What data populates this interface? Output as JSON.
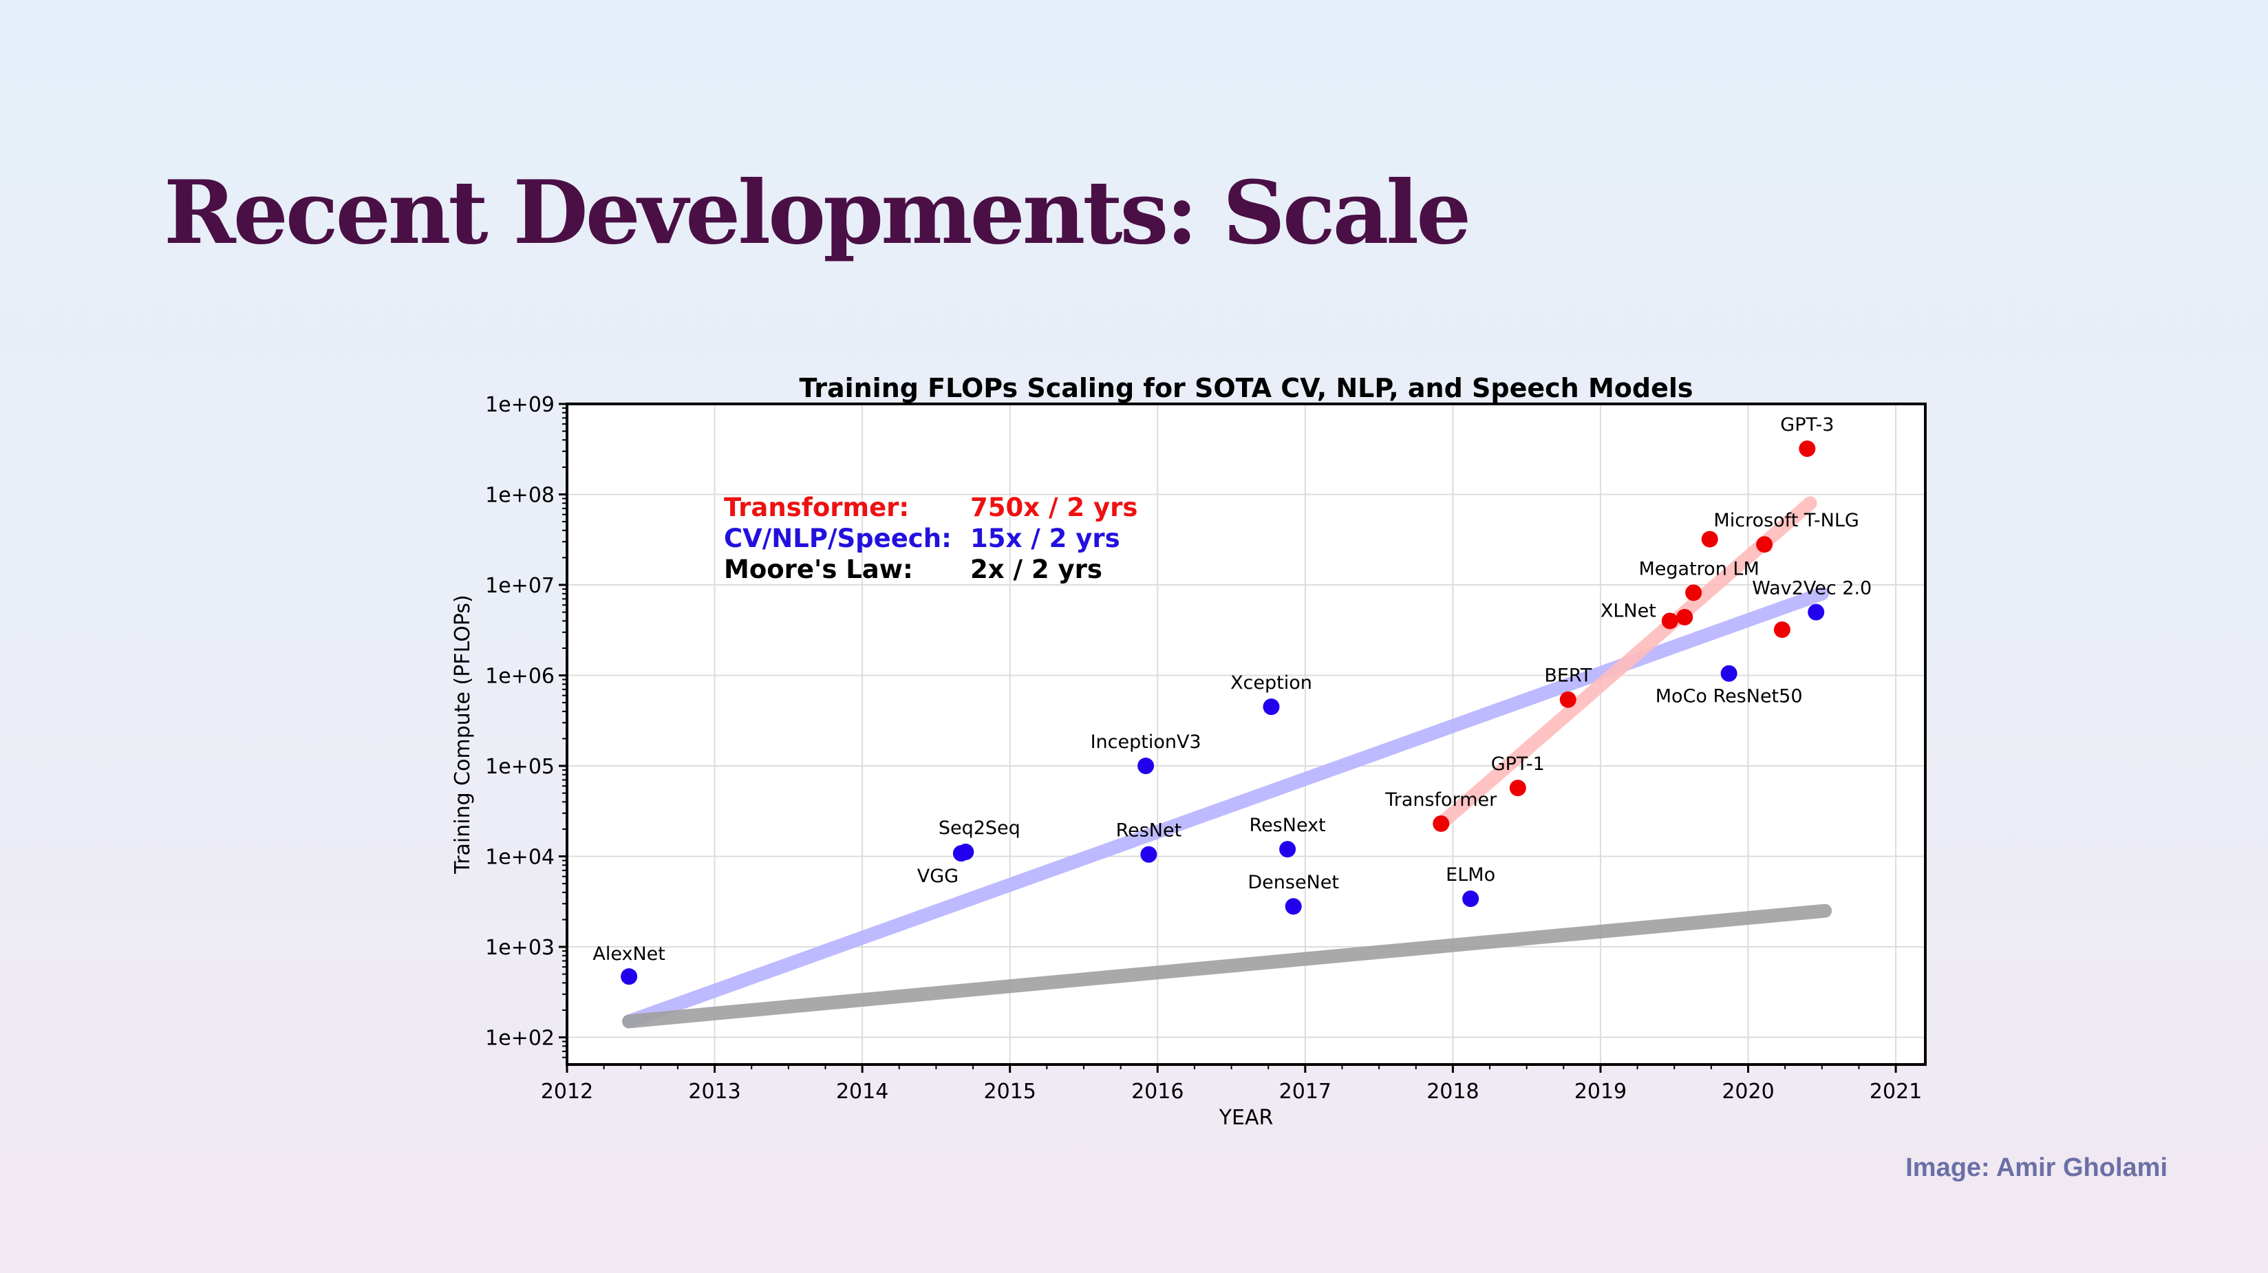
{
  "slide": {
    "title": "Recent Developments: Scale",
    "credit": "Image: Amir Gholami"
  },
  "chart_data": {
    "type": "scatter",
    "title": "Training FLOPs Scaling for SOTA CV, NLP, and Speech Models",
    "xlabel": "YEAR",
    "ylabel": "Training Compute (PFLOPs)",
    "xlim": [
      2012,
      2021.2
    ],
    "ylim_log10": [
      1.7,
      9.0
    ],
    "y_scale": "log",
    "x_ticks": [
      2012,
      2013,
      2014,
      2015,
      2016,
      2017,
      2018,
      2019,
      2020,
      2021
    ],
    "y_ticks": [
      "1e+02",
      "1e+03",
      "1e+04",
      "1e+05",
      "1e+06",
      "1e+07",
      "1e+08",
      "1e+09"
    ],
    "grid": true,
    "colors": {
      "cv_nlp_speech": "#2200ee",
      "transformer": "#ee0000",
      "moores_law": "#000000"
    },
    "annotations": [
      {
        "label": "Transformer:",
        "value": "750x / 2 yrs",
        "color": "#ee1111"
      },
      {
        "label": "CV/NLP/Speech:",
        "value": "15x / 2 yrs",
        "color": "#2211dd"
      },
      {
        "label": "Moore's Law:",
        "value": "2x / 2 yrs",
        "color": "#000000"
      }
    ],
    "series": [
      {
        "color": "#2200ee",
        "points": [
          {
            "name": "AlexNet",
            "x": 2012.42,
            "y": 470
          },
          {
            "name": "VGG",
            "x": 2014.67,
            "y": 10800
          },
          {
            "name": "Seq2Seq",
            "x": 2014.7,
            "y": 11200
          },
          {
            "name": "InceptionV3",
            "x": 2015.92,
            "y": 100000
          },
          {
            "name": "ResNet",
            "x": 2015.94,
            "y": 10500
          },
          {
            "name": "Xception",
            "x": 2016.77,
            "y": 450000
          },
          {
            "name": "ResNext",
            "x": 2016.88,
            "y": 12000
          },
          {
            "name": "DenseNet",
            "x": 2016.92,
            "y": 2800
          },
          {
            "name": "ELMo",
            "x": 2018.12,
            "y": 3400
          },
          {
            "name": "MoCo ResNet50",
            "x": 2019.87,
            "y": 1050000
          },
          {
            "name": "Wav2Vec 2.0",
            "x": 2020.46,
            "y": 5000000
          }
        ]
      },
      {
        "color": "#ee0000",
        "points": [
          {
            "name": "Transformer",
            "x": 2017.92,
            "y": 23000
          },
          {
            "name": "GPT-1",
            "x": 2018.44,
            "y": 57000
          },
          {
            "name": "BERT",
            "x": 2018.78,
            "y": 540000
          },
          {
            "name": "XLNet",
            "x": 2019.47,
            "y": 4000000
          },
          {
            "name": "",
            "x": 2019.57,
            "y": 4400000
          },
          {
            "name": "Megatron LM",
            "x": 2019.63,
            "y": 8200000
          },
          {
            "name": "",
            "x": 2019.74,
            "y": 32000000
          },
          {
            "name": "Microsoft T-NLG",
            "x": 2020.11,
            "y": 28000000
          },
          {
            "name": "",
            "x": 2020.23,
            "y": 3200000
          },
          {
            "name": "GPT-3",
            "x": 2020.4,
            "y": 320000000
          }
        ]
      }
    ],
    "trend_lines": [
      {
        "color": "#b8b3ff",
        "x": [
          2012.42,
          2020.5
        ],
        "y": [
          150,
          8000000
        ]
      },
      {
        "color": "#a0a0a0",
        "x": [
          2012.42,
          2020.52
        ],
        "y": [
          150,
          2500
        ]
      },
      {
        "color": "#ffbcbc",
        "x": [
          2017.92,
          2020.42
        ],
        "y": [
          23000,
          80000000
        ]
      }
    ]
  }
}
